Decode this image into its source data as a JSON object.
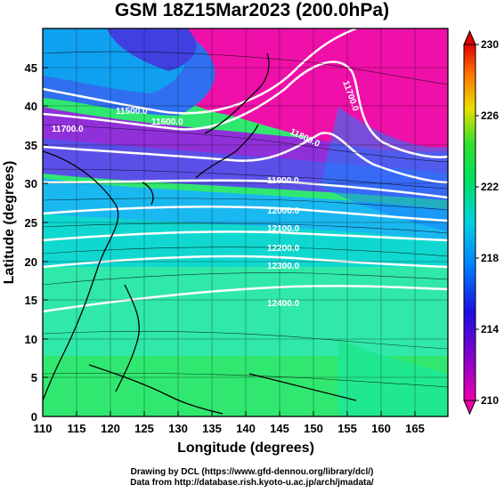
{
  "title": "GSM 18Z15Mar2023 (200.0hPa)",
  "axes": {
    "xlabel": "Longitude (degrees)",
    "ylabel": "Latitude  (degrees)",
    "x_ticks": [
      "110",
      "115",
      "120",
      "125",
      "130",
      "135",
      "140",
      "145",
      "150",
      "155",
      "160",
      "165"
    ],
    "y_ticks": [
      "0",
      "5",
      "10",
      "15",
      "20",
      "25",
      "30",
      "35",
      "40",
      "45"
    ],
    "xlim": [
      110,
      170
    ],
    "ylim": [
      0,
      50
    ]
  },
  "colorbar": {
    "labels": [
      "230",
      "226",
      "222",
      "218",
      "214",
      "210"
    ],
    "range": [
      210,
      230
    ]
  },
  "contour_labels": [
    "11500.0",
    "11600.0",
    "11700.0",
    "11700.0",
    "11800.0",
    "11900.0",
    "12000.0",
    "12100.0",
    "12200.0",
    "12300.0",
    "12400.0"
  ],
  "credits": {
    "line1": "Drawing by DCL (https://www.gfd-dennou.org/library/dcl/)",
    "line2": "Data from http://database.rish.kyoto-u.ac.jp/arch/jmadata/"
  }
}
